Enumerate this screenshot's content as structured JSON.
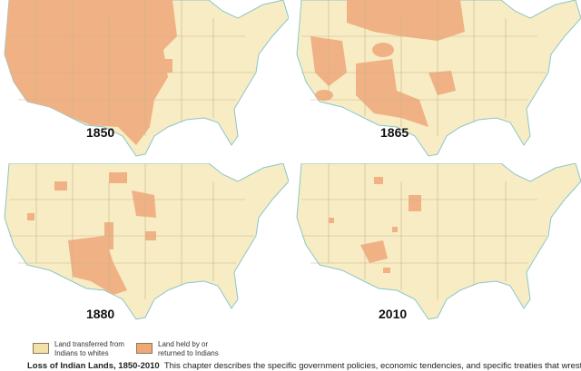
{
  "maps": [
    {
      "year": "1850"
    },
    {
      "year": "1865"
    },
    {
      "year": "1880"
    },
    {
      "year": "2010"
    }
  ],
  "legend": [
    {
      "label_line1": "Land transferred from",
      "label_line2": "Indians to whites",
      "color": "#f3e2a8"
    },
    {
      "label_line1": "Land held by or",
      "label_line2": "returned to Indians",
      "color": "#f0a878"
    }
  ],
  "caption": {
    "title": "Loss of Indian Lands, 1850-2010",
    "text": "This chapter describes the specific government policies, economic tendencies, and specific treaties that wrested"
  },
  "colors": {
    "land": "#f7ecc4",
    "indian": "#f0b184",
    "water": "#dff0f2",
    "border": "#b8a880"
  }
}
